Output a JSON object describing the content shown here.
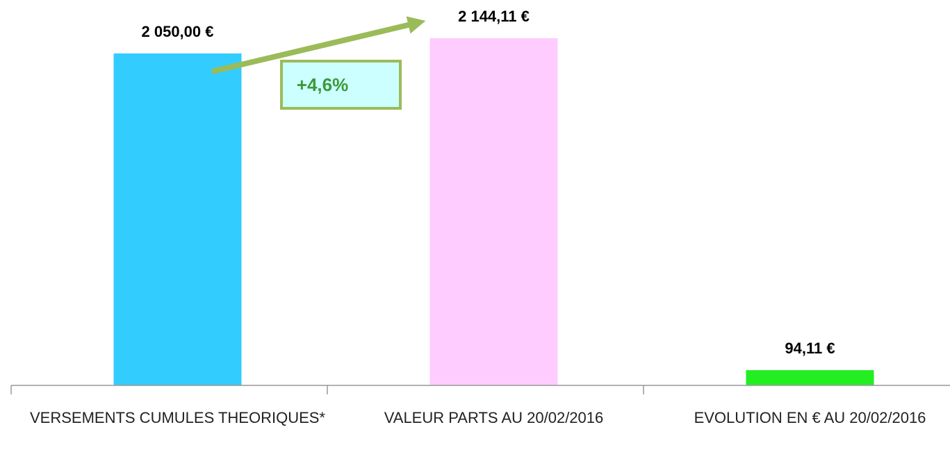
{
  "chart_data": {
    "type": "bar",
    "categories": [
      "VERSEMENTS CUMULES THEORIQUES*",
      "VALEUR PARTS AU 20/02/2016",
      "EVOLUTION EN € AU 20/02/2016"
    ],
    "values": [
      2050,
      2144.11,
      94.11
    ],
    "value_labels": [
      "2 050,00 €",
      "2 144,11 €",
      "94,11 €"
    ],
    "colors": [
      "#33ccff",
      "#ffccff",
      "#22ee22"
    ],
    "ylim": [
      0,
      2380
    ],
    "annotation": "+4,6%"
  }
}
